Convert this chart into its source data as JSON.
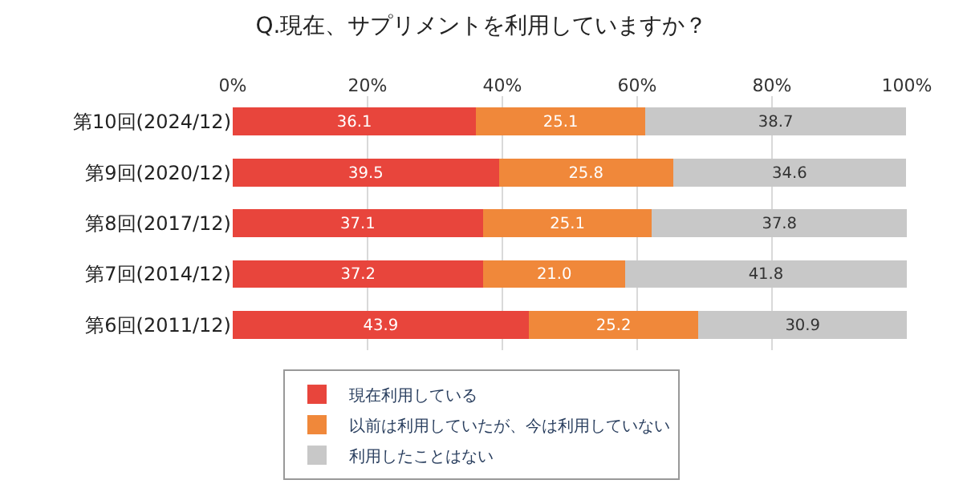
{
  "chart_data": {
    "type": "bar",
    "orientation": "horizontal",
    "stacked": true,
    "title": "Q.現在、サプリメントを利用していますか？",
    "categories": [
      "第10回(2024/12)",
      "第9回(2020/12)",
      "第8回(2017/12)",
      "第7回(2014/12)",
      "第6回(2011/12)"
    ],
    "series": [
      {
        "name": "現在利用している",
        "color": "#e8453c",
        "values": [
          36.1,
          39.5,
          37.1,
          37.2,
          43.9
        ],
        "value_labels": [
          "36.1",
          "39.5",
          "37.1",
          "37.2",
          "43.9"
        ]
      },
      {
        "name": "以前は利用していたが、今は利用していない",
        "color": "#f0883a",
        "values": [
          25.1,
          25.8,
          25.1,
          21.0,
          25.2
        ],
        "value_labels": [
          "25.1",
          "25.8",
          "25.1",
          "21.0",
          "25.2"
        ]
      },
      {
        "name": "利用したことはない",
        "color": "#c8c8c8",
        "values": [
          38.7,
          34.6,
          37.8,
          41.8,
          30.9
        ],
        "value_labels": [
          "38.7",
          "34.6",
          "37.8",
          "41.8",
          "30.9"
        ]
      }
    ],
    "xlim": [
      0,
      100
    ],
    "xticks": [
      {
        "value": 0,
        "label": "0%"
      },
      {
        "value": 20,
        "label": "20%"
      },
      {
        "value": 40,
        "label": "40%"
      },
      {
        "value": 60,
        "label": "60%"
      },
      {
        "value": 80,
        "label": "80%"
      },
      {
        "value": 100,
        "label": "100%"
      }
    ],
    "grid": "x",
    "legend": "bottom"
  }
}
